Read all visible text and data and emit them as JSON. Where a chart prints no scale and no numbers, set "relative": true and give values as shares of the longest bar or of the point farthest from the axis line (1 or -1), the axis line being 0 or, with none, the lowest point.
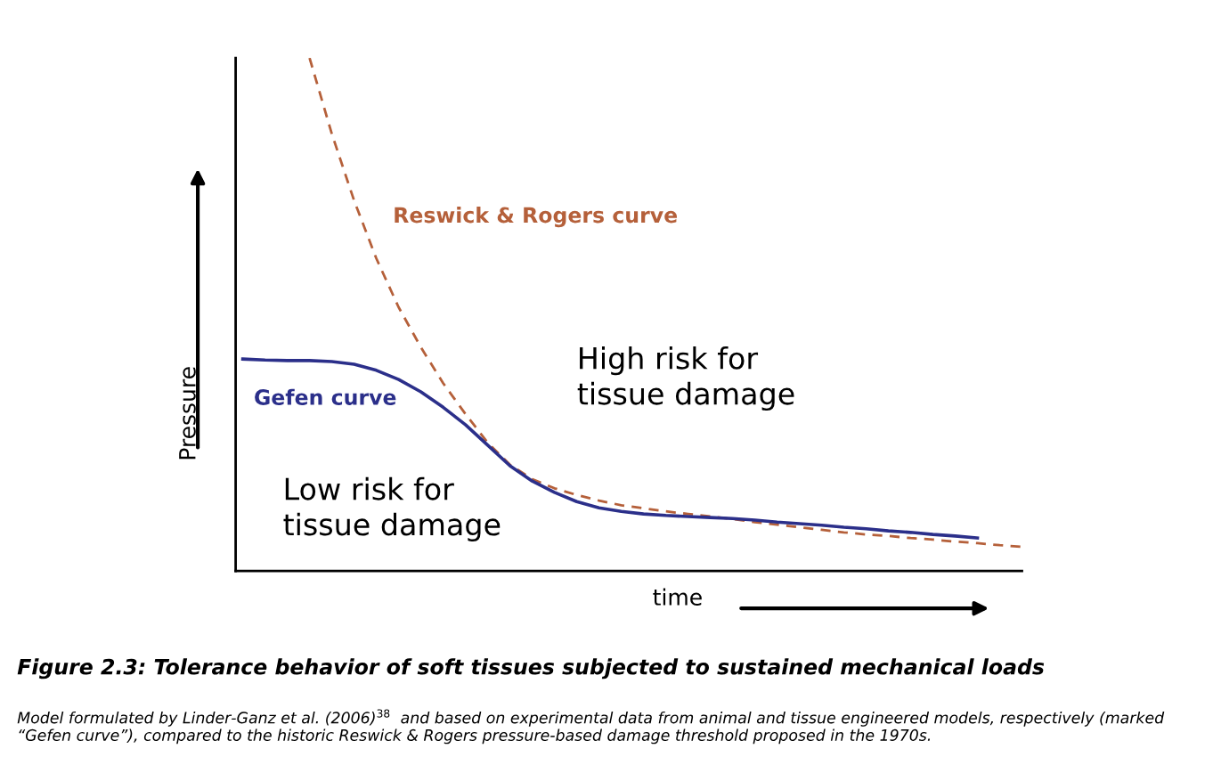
{
  "chart_data": {
    "type": "line",
    "relative": true,
    "title": "Figure 2.3: Tolerance behavior of soft tissues subjected to sustained mechanical loads",
    "xlabel": "time",
    "ylabel": "Pressure",
    "categories": [
      null,
      null,
      null,
      null,
      null,
      null,
      null,
      null,
      null,
      null,
      null,
      null,
      null,
      null,
      null,
      null,
      null,
      null,
      null,
      null,
      null,
      null,
      null,
      null,
      null,
      null,
      null,
      null,
      null,
      null,
      null,
      null,
      null,
      null,
      null,
      null
    ],
    "series": [
      {
        "name": "Reswick & Rogers curve",
        "color": "#b5603a",
        "line_style": "dashed",
        "values": [
          null,
          null,
          null,
          1.0,
          0.852,
          0.722,
          0.609,
          0.514,
          0.436,
          0.366,
          0.306,
          0.25,
          0.207,
          0.179,
          0.161,
          0.148,
          0.137,
          0.128,
          0.122,
          0.116,
          0.111,
          0.106,
          0.101,
          0.095,
          0.09,
          0.085,
          0.08,
          0.075,
          0.071,
          0.068,
          0.064,
          0.061,
          0.057,
          0.054,
          0.05,
          0.047
        ]
      },
      {
        "name": "Gefen curve",
        "color": "#2b2f8a",
        "line_style": "solid",
        "values": [
          0.413,
          0.411,
          0.41,
          0.41,
          0.408,
          0.403,
          0.391,
          0.373,
          0.349,
          0.319,
          0.285,
          0.245,
          0.205,
          0.175,
          0.153,
          0.135,
          0.123,
          0.116,
          0.111,
          0.108,
          0.106,
          0.104,
          0.102,
          0.099,
          0.095,
          0.092,
          0.089,
          0.085,
          0.082,
          0.078,
          0.075,
          0.071,
          0.068,
          0.064,
          null,
          null
        ]
      }
    ],
    "annotations": [
      "High risk for\ntissue damage",
      "Low risk for\ntissue damage",
      "Model formulated by Linder-Ganz et al. (2006)$^{38}$  and based on experimental data from animal and tissue engineered models, respectively (marked “Gefen curve”), compared to the historic Reswick & Rogers pressure-based damage threshold proposed in the 1970s."
    ],
    "legend": false,
    "marker": "none"
  }
}
